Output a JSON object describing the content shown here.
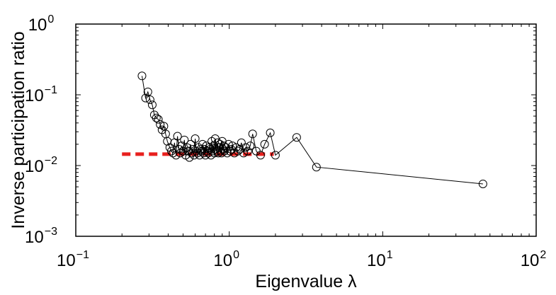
{
  "chart_data": {
    "type": "scatter",
    "xlabel": "Eigenvalue λ",
    "ylabel": "Inverse participation ratio",
    "xscale": "log",
    "yscale": "log",
    "xlim": [
      0.1,
      100
    ],
    "ylim": [
      0.001,
      1
    ],
    "grid": false,
    "x_ticks": [
      {
        "value": 0.1,
        "base": "10",
        "exp": "−1"
      },
      {
        "value": 1,
        "base": "10",
        "exp": "0"
      },
      {
        "value": 10,
        "base": "10",
        "exp": "1"
      },
      {
        "value": 100,
        "base": "10",
        "exp": "2"
      }
    ],
    "y_ticks": [
      {
        "value": 0.001,
        "base": "10",
        "exp": "−3"
      },
      {
        "value": 0.01,
        "base": "10",
        "exp": "−2"
      },
      {
        "value": 0.1,
        "base": "10",
        "exp": "−1"
      },
      {
        "value": 1,
        "base": "10",
        "exp": "0"
      }
    ],
    "series": [
      {
        "marker": "open-circle",
        "line": "solid",
        "color": "#000000",
        "x": [
          0.27,
          0.285,
          0.295,
          0.305,
          0.315,
          0.325,
          0.335,
          0.345,
          0.355,
          0.365,
          0.375,
          0.385,
          0.395,
          0.41,
          0.42,
          0.43,
          0.44,
          0.45,
          0.46,
          0.47,
          0.48,
          0.49,
          0.5,
          0.51,
          0.52,
          0.53,
          0.54,
          0.55,
          0.56,
          0.57,
          0.58,
          0.59,
          0.6,
          0.61,
          0.62,
          0.63,
          0.64,
          0.65,
          0.66,
          0.67,
          0.68,
          0.69,
          0.7,
          0.71,
          0.72,
          0.73,
          0.74,
          0.75,
          0.76,
          0.77,
          0.78,
          0.79,
          0.8,
          0.81,
          0.82,
          0.83,
          0.84,
          0.85,
          0.86,
          0.87,
          0.88,
          0.89,
          0.9,
          0.91,
          0.92,
          0.93,
          0.95,
          0.97,
          0.99,
          1.01,
          1.03,
          1.05,
          1.08,
          1.11,
          1.14,
          1.17,
          1.2,
          1.24,
          1.28,
          1.32,
          1.37,
          1.42,
          1.5,
          1.6,
          1.7,
          1.85,
          2.0,
          2.75,
          3.7,
          45.0
        ],
        "y": [
          0.185,
          0.09,
          0.11,
          0.085,
          0.072,
          0.052,
          0.047,
          0.045,
          0.038,
          0.032,
          0.036,
          0.028,
          0.022,
          0.018,
          0.016,
          0.015,
          0.021,
          0.014,
          0.026,
          0.017,
          0.015,
          0.019,
          0.016,
          0.023,
          0.014,
          0.018,
          0.016,
          0.013,
          0.02,
          0.015,
          0.017,
          0.014,
          0.024,
          0.016,
          0.015,
          0.018,
          0.014,
          0.017,
          0.016,
          0.02,
          0.015,
          0.017,
          0.014,
          0.019,
          0.016,
          0.015,
          0.018,
          0.017,
          0.014,
          0.022,
          0.016,
          0.019,
          0.015,
          0.024,
          0.017,
          0.016,
          0.021,
          0.015,
          0.018,
          0.02,
          0.016,
          0.015,
          0.022,
          0.017,
          0.019,
          0.016,
          0.018,
          0.015,
          0.02,
          0.016,
          0.017,
          0.019,
          0.015,
          0.018,
          0.016,
          0.017,
          0.021,
          0.015,
          0.018,
          0.016,
          0.019,
          0.028,
          0.016,
          0.014,
          0.02,
          0.029,
          0.014,
          0.025,
          0.0095,
          0.0055
        ]
      }
    ],
    "reference_line": {
      "style": "dashed",
      "color": "#e8201e",
      "x": [
        0.2,
        1.95
      ],
      "y": [
        0.0145,
        0.0145
      ]
    }
  }
}
